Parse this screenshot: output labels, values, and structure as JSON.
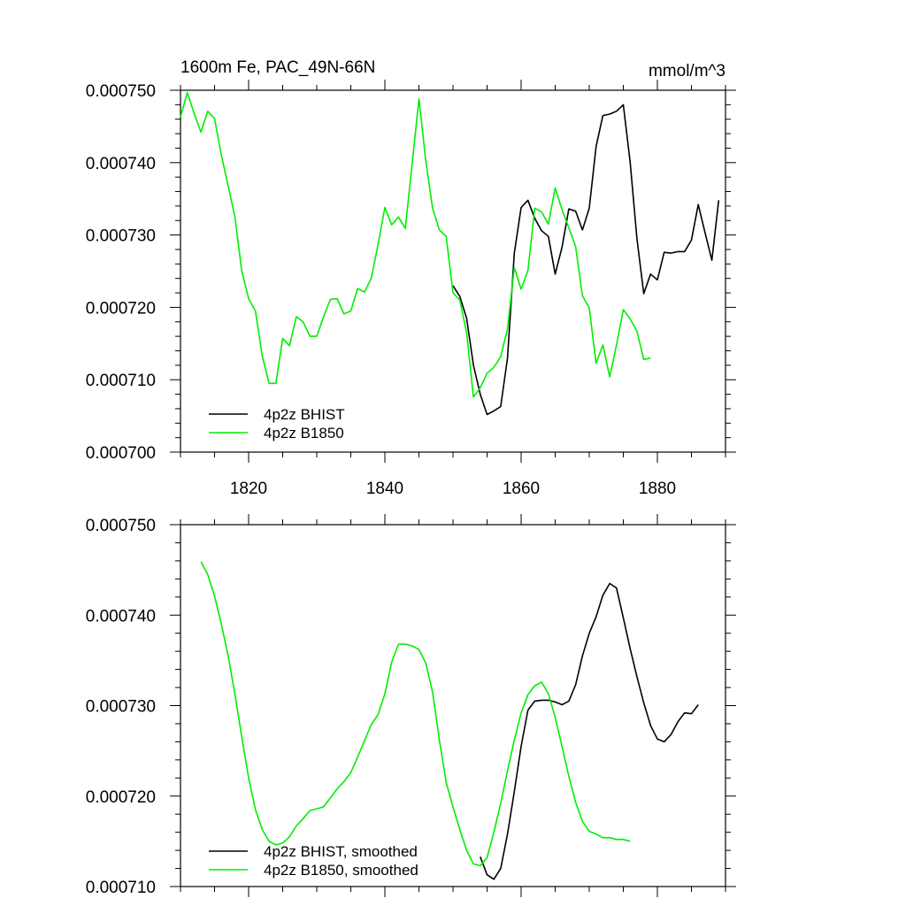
{
  "figure": {
    "title_left": "1600m Fe, PAC_49N-66N",
    "title_right": "mmol/m^3"
  },
  "colors": {
    "BHIST": "#000000",
    "B1850": "#00ee00"
  },
  "chart_data": [
    {
      "type": "line",
      "title": "1600m Fe, PAC_49N-66N",
      "units": "mmol/m^3",
      "xlim": [
        1810,
        1890
      ],
      "ylim": [
        0.0007,
        0.00075
      ],
      "xticks": [
        1820,
        1840,
        1860,
        1880
      ],
      "xtick_labels": [
        "1820",
        "1840",
        "1860",
        "1880"
      ],
      "yticks": [
        0.0007,
        0.00071,
        0.00072,
        0.00073,
        0.00074,
        0.00075
      ],
      "ytick_labels": [
        "0.000700",
        "0.000710",
        "0.000720",
        "0.000730",
        "0.000740",
        "0.000750"
      ],
      "legend_position": "bottom-left",
      "series": [
        {
          "name": "4p2z BHIST",
          "color": "#000000",
          "x": [
            1850,
            1851,
            1852,
            1853,
            1854,
            1855,
            1856,
            1857,
            1858,
            1859,
            1860,
            1861,
            1862,
            1863,
            1864,
            1865,
            1866,
            1867,
            1868,
            1869,
            1870,
            1871,
            1872,
            1873,
            1874,
            1875,
            1876,
            1877,
            1878,
            1879,
            1880,
            1881,
            1882,
            1883,
            1884,
            1885,
            1886,
            1887,
            1888,
            1889
          ],
          "y": [
            0.000723,
            0.0007215,
            0.0007185,
            0.000712,
            0.000708,
            0.0007052,
            0.0007057,
            0.0007063,
            0.000713,
            0.0007275,
            0.0007338,
            0.0007348,
            0.0007323,
            0.0007306,
            0.0007298,
            0.0007246,
            0.0007283,
            0.0007336,
            0.0007333,
            0.0007307,
            0.0007337,
            0.0007422,
            0.0007465,
            0.0007467,
            0.0007471,
            0.000748,
            0.0007401,
            0.0007295,
            0.0007219,
            0.0007246,
            0.0007238,
            0.0007276,
            0.0007275,
            0.0007277,
            0.0007277,
            0.0007293,
            0.0007342,
            0.0007303,
            0.0007265,
            0.0007348
          ]
        },
        {
          "name": "4p2z B1850",
          "color": "#00ee00",
          "x": [
            1810,
            1811,
            1812,
            1813,
            1814,
            1815,
            1816,
            1817,
            1818,
            1819,
            1820,
            1821,
            1822,
            1823,
            1824,
            1825,
            1826,
            1827,
            1828,
            1829,
            1830,
            1831,
            1832,
            1833,
            1834,
            1835,
            1836,
            1837,
            1838,
            1839,
            1840,
            1841,
            1842,
            1843,
            1844,
            1845,
            1846,
            1847,
            1848,
            1849,
            1850,
            1851,
            1852,
            1853,
            1854,
            1855,
            1856,
            1857,
            1858,
            1859,
            1860,
            1861,
            1862,
            1863,
            1864,
            1865,
            1866,
            1867,
            1868,
            1869,
            1870,
            1871,
            1872,
            1873,
            1874,
            1875,
            1876,
            1877,
            1878,
            1879
          ],
          "y": [
            0.0007463,
            0.0007497,
            0.0007468,
            0.0007442,
            0.0007471,
            0.0007461,
            0.000741,
            0.0007368,
            0.0007324,
            0.000725,
            0.0007212,
            0.0007195,
            0.0007133,
            0.0007095,
            0.0007095,
            0.0007157,
            0.0007147,
            0.0007187,
            0.000718,
            0.000716,
            0.000716,
            0.0007187,
            0.0007211,
            0.0007212,
            0.0007191,
            0.0007195,
            0.0007226,
            0.0007221,
            0.000724,
            0.0007287,
            0.0007338,
            0.0007314,
            0.0007325,
            0.0007309,
            0.0007398,
            0.0007488,
            0.0007403,
            0.0007337,
            0.0007307,
            0.0007298,
            0.000722,
            0.000721,
            0.0007165,
            0.0007076,
            0.0007089,
            0.0007109,
            0.0007117,
            0.0007132,
            0.000717,
            0.0007255,
            0.0007225,
            0.0007251,
            0.0007337,
            0.0007332,
            0.0007315,
            0.0007365,
            0.0007335,
            0.000731,
            0.0007284,
            0.0007216,
            0.0007199,
            0.0007123,
            0.0007148,
            0.0007104,
            0.0007148,
            0.0007197,
            0.0007184,
            0.0007167,
            0.0007128,
            0.000713
          ]
        }
      ]
    },
    {
      "type": "line",
      "xlim": [
        1810,
        1890
      ],
      "ylim": [
        0.00071,
        0.00075
      ],
      "xticks": [
        1820,
        1840,
        1860,
        1880
      ],
      "xtick_labels": [],
      "yticks": [
        0.00071,
        0.00072,
        0.00073,
        0.00074,
        0.00075
      ],
      "ytick_labels": [
        "0.000710",
        "0.000720",
        "0.000730",
        "0.000740",
        "0.000750"
      ],
      "legend_position": "bottom-left",
      "series": [
        {
          "name": "4p2z BHIST, smoothed",
          "color": "#000000",
          "x": [
            1854,
            1855,
            1856,
            1857,
            1858,
            1859,
            1860,
            1861,
            1862,
            1863,
            1864,
            1865,
            1866,
            1867,
            1868,
            1869,
            1870,
            1871,
            1872,
            1873,
            1874,
            1875,
            1876,
            1877,
            1878,
            1879,
            1880,
            1881,
            1882,
            1883,
            1884,
            1885,
            1886
          ],
          "y": [
            0.0007133,
            0.0007113,
            0.0007108,
            0.000712,
            0.0007158,
            0.0007205,
            0.0007255,
            0.0007295,
            0.0007305,
            0.0007306,
            0.0007306,
            0.0007304,
            0.0007301,
            0.0007305,
            0.0007323,
            0.0007355,
            0.000738,
            0.0007398,
            0.0007422,
            0.0007435,
            0.000743,
            0.0007397,
            0.0007363,
            0.0007332,
            0.0007303,
            0.0007278,
            0.0007263,
            0.000726,
            0.0007268,
            0.0007282,
            0.0007292,
            0.0007291,
            0.0007301
          ]
        },
        {
          "name": "4p2z B1850, smoothed",
          "color": "#00ee00",
          "x": [
            1813,
            1814,
            1815,
            1816,
            1817,
            1818,
            1819,
            1820,
            1821,
            1822,
            1823,
            1824,
            1825,
            1826,
            1827,
            1828,
            1829,
            1830,
            1831,
            1832,
            1833,
            1834,
            1835,
            1836,
            1837,
            1838,
            1839,
            1840,
            1841,
            1842,
            1843,
            1844,
            1845,
            1846,
            1847,
            1848,
            1849,
            1850,
            1851,
            1852,
            1853,
            1854,
            1855,
            1856,
            1857,
            1858,
            1859,
            1860,
            1861,
            1862,
            1863,
            1864,
            1865,
            1866,
            1867,
            1868,
            1869,
            1870,
            1871,
            1872,
            1873,
            1874,
            1875,
            1876
          ],
          "y": [
            0.0007459,
            0.0007445,
            0.0007421,
            0.000739,
            0.0007355,
            0.0007312,
            0.0007265,
            0.000722,
            0.0007185,
            0.0007163,
            0.000715,
            0.0007146,
            0.0007148,
            0.0007155,
            0.0007167,
            0.0007175,
            0.0007184,
            0.0007186,
            0.0007188,
            0.0007198,
            0.0007208,
            0.0007216,
            0.0007226,
            0.0007243,
            0.0007261,
            0.0007279,
            0.000729,
            0.0007313,
            0.0007348,
            0.0007368,
            0.0007368,
            0.0007366,
            0.0007362,
            0.0007347,
            0.0007315,
            0.0007262,
            0.0007215,
            0.0007188,
            0.0007163,
            0.000714,
            0.0007125,
            0.0007123,
            0.0007132,
            0.000716,
            0.0007192,
            0.0007228,
            0.0007262,
            0.0007292,
            0.0007312,
            0.0007322,
            0.0007326,
            0.0007313,
            0.0007287,
            0.0007255,
            0.0007222,
            0.0007193,
            0.0007172,
            0.0007161,
            0.0007158,
            0.0007154,
            0.0007154,
            0.0007152,
            0.0007152,
            0.000715
          ]
        }
      ]
    }
  ]
}
